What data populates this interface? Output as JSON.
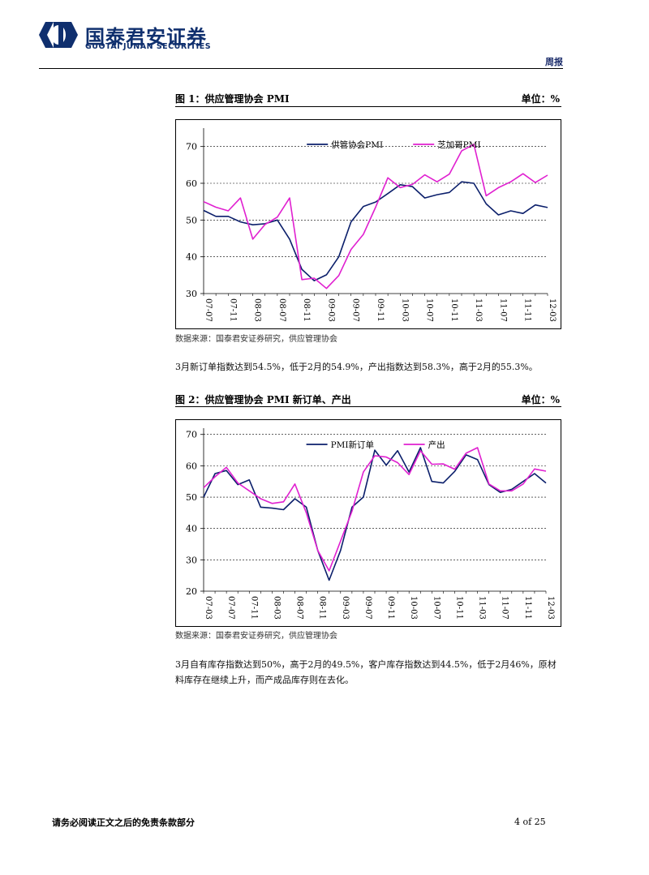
{
  "header": {
    "logo_cn": "国泰君安证券",
    "logo_en": "GUOTAI JUNAN SECURITIES",
    "report_type": "周报",
    "brand_color": "#0f2f6e"
  },
  "figure1": {
    "title": "图 1：供应管理协会 PMI",
    "unit": "单位：%",
    "source": "数据来源：国泰君安证券研究，供应管理协会",
    "chart_data": {
      "type": "line",
      "x": [
        "07-07",
        "07-09",
        "07-11",
        "08-01",
        "08-03",
        "08-05",
        "08-07",
        "08-09",
        "08-11",
        "09-01",
        "09-03",
        "09-05",
        "09-07",
        "09-09",
        "09-11",
        "10-01",
        "10-03",
        "10-05",
        "10-07",
        "10-09",
        "10-11",
        "11-01",
        "11-03",
        "11-05",
        "11-07",
        "11-09",
        "11-11",
        "12-01",
        "12-03"
      ],
      "tick_labels": [
        "07-07",
        "07-11",
        "08-03",
        "08-07",
        "08-11",
        "09-03",
        "09-07",
        "09-11",
        "10-03",
        "10-07",
        "10-11",
        "11-03",
        "11-07",
        "11-11",
        "12-03"
      ],
      "ylim": [
        30,
        75
      ],
      "yticks": [
        30,
        40,
        50,
        60,
        70
      ],
      "grid": "horizontal",
      "legend": "top-center",
      "series": [
        {
          "name": "供管协会PMI",
          "color": "#0b1f6b",
          "values": [
            52.6,
            51.0,
            51.0,
            49.5,
            48.7,
            49.0,
            50.0,
            44.8,
            36.6,
            33.5,
            35.1,
            40.0,
            49.5,
            53.7,
            54.9,
            57.2,
            59.6,
            59.1,
            56.0,
            56.9,
            57.5,
            60.4,
            60.0,
            54.4,
            51.4,
            52.5,
            51.8,
            54.1,
            53.4
          ]
        },
        {
          "name": "芝加哥PMI",
          "color": "#e020d0",
          "values": [
            55.0,
            53.5,
            52.5,
            56.0,
            44.8,
            48.8,
            50.8,
            56.0,
            33.8,
            34.2,
            31.4,
            34.9,
            42.0,
            46.1,
            53.5,
            61.5,
            58.8,
            59.7,
            62.3,
            60.4,
            62.5,
            68.8,
            70.6,
            56.6,
            58.8,
            60.4,
            62.6,
            60.2,
            62.2
          ]
        }
      ]
    }
  },
  "para1": "3月新订单指数达到54.5%，低于2月的54.9%，产出指数达到58.3%，高于2月的55.3%。",
  "figure2": {
    "title": "图 2：供应管理协会 PMI 新订单、产出",
    "unit": "单位：%",
    "source": "数据来源：国泰君安证券研究，供应管理协会",
    "chart_data": {
      "type": "line",
      "x": [
        "07-03",
        "07-05",
        "07-07",
        "07-09",
        "07-11",
        "08-01",
        "08-03",
        "08-05",
        "08-07",
        "08-09",
        "08-11",
        "09-01",
        "09-03",
        "09-05",
        "09-07",
        "09-09",
        "09-11",
        "10-01",
        "10-03",
        "10-05",
        "10-07",
        "10-09",
        "10-11",
        "11-01",
        "11-03",
        "11-05",
        "11-07",
        "11-09",
        "11-11",
        "12-01",
        "12-03"
      ],
      "tick_labels": [
        "07-03",
        "07-07",
        "07-11",
        "08-03",
        "08-07",
        "08-11",
        "09-03",
        "09-07",
        "09-11",
        "10-03",
        "10-07",
        "10-11",
        "11-03",
        "11-07",
        "11-11",
        "12-03"
      ],
      "ylim": [
        20,
        72
      ],
      "yticks": [
        20,
        30,
        40,
        50,
        60,
        70
      ],
      "grid": "horizontal",
      "legend": "top-center",
      "series": [
        {
          "name": "PMI新订单",
          "color": "#0b1f6b",
          "values": [
            50.0,
            57.5,
            58.5,
            54.0,
            55.5,
            46.8,
            46.5,
            46.0,
            49.5,
            46.8,
            33.0,
            23.5,
            33.0,
            46.8,
            50.0,
            65.0,
            60.2,
            64.8,
            58.0,
            65.8,
            55.0,
            54.5,
            58.2,
            63.5,
            62.0,
            54.0,
            51.5,
            52.5,
            55.0,
            57.5,
            54.5
          ]
        },
        {
          "name": "产出",
          "color": "#e020d0",
          "values": [
            53.0,
            56.5,
            59.5,
            54.5,
            52.0,
            49.5,
            48.0,
            48.5,
            54.2,
            45.0,
            33.0,
            26.5,
            36.0,
            45.5,
            58.0,
            63.2,
            62.8,
            61.0,
            57.2,
            64.8,
            60.5,
            60.6,
            58.9,
            64.0,
            65.8,
            54.2,
            52.0,
            52.0,
            54.2,
            59.0,
            58.3
          ]
        }
      ]
    }
  },
  "para2": "3月自有库存指数达到50%，高于2月的49.5%，客户库存指数达到44.5%，低于2月46%，原材料库存在继续上升，而产成品库存则在去化。",
  "footer": {
    "disclaimer": "请务必阅读正文之后的免责条款部分",
    "page": "4 of 25"
  }
}
